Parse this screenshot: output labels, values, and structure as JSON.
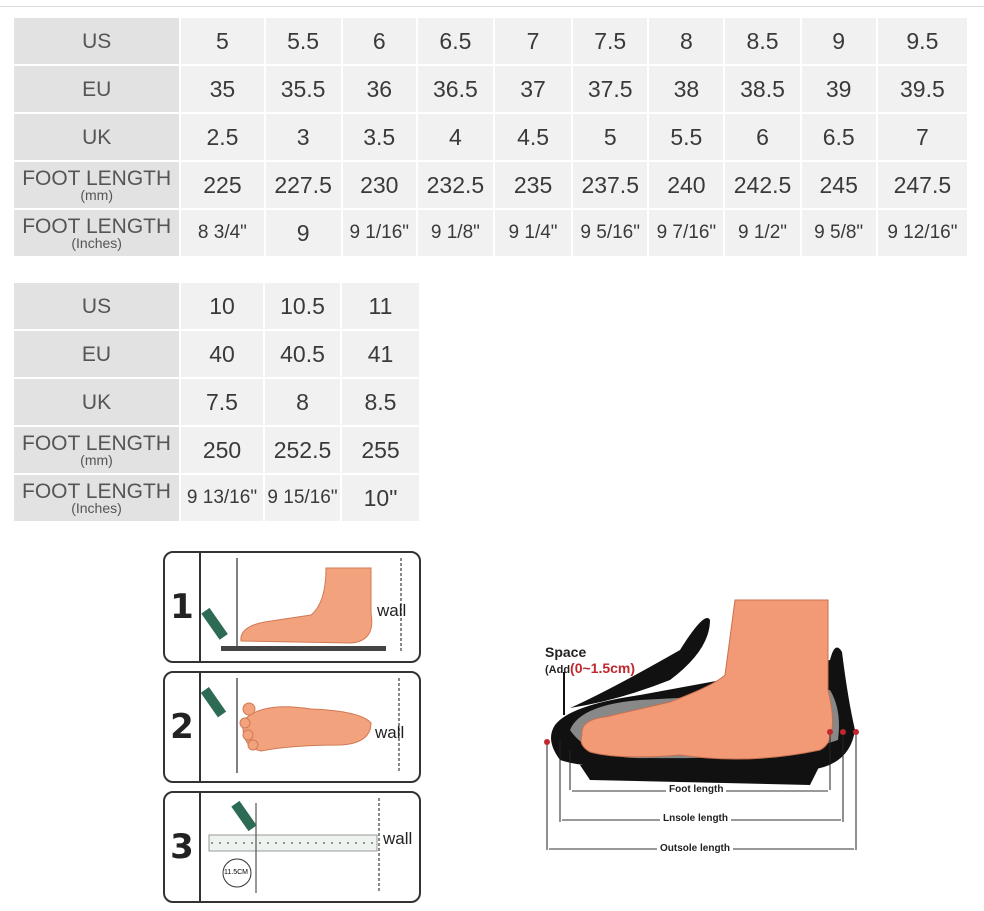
{
  "table1": {
    "rows": [
      {
        "label": "US",
        "sub": "",
        "cells": [
          "5",
          "5.5",
          "6",
          "6.5",
          "7",
          "7.5",
          "8",
          "8.5",
          "9",
          "9.5"
        ]
      },
      {
        "label": "EU",
        "sub": "",
        "cells": [
          "35",
          "35.5",
          "36",
          "36.5",
          "37",
          "37.5",
          "38",
          "38.5",
          "39",
          "39.5"
        ]
      },
      {
        "label": "UK",
        "sub": "",
        "cells": [
          "2.5",
          "3",
          "3.5",
          "4",
          "4.5",
          "5",
          "5.5",
          "6",
          "6.5",
          "7"
        ]
      },
      {
        "label": "FOOT LENGTH",
        "sub": "(mm)",
        "cells": [
          "225",
          "227.5",
          "230",
          "232.5",
          "235",
          "237.5",
          "240",
          "242.5",
          "245",
          "247.5"
        ]
      },
      {
        "label": "FOOT LENGTH",
        "sub": "(Inches)",
        "cells": [
          "8 3/4\"",
          "9",
          "9 1/16\"",
          "9 1/8\"",
          "9 1/4\"",
          "9 5/16\"",
          "9 7/16\"",
          "9 1/2\"",
          "9 5/8\"",
          "9 12/16\""
        ]
      }
    ]
  },
  "table2": {
    "rows": [
      {
        "label": "US",
        "sub": "",
        "cells": [
          "10",
          "10.5",
          "11"
        ]
      },
      {
        "label": "EU",
        "sub": "",
        "cells": [
          "40",
          "40.5",
          "41"
        ]
      },
      {
        "label": "UK",
        "sub": "",
        "cells": [
          "7.5",
          "8",
          "8.5"
        ]
      },
      {
        "label": "FOOT LENGTH",
        "sub": "(mm)",
        "cells": [
          "250",
          "252.5",
          "255"
        ]
      },
      {
        "label": "FOOT LENGTH",
        "sub": "(Inches)",
        "cells": [
          "9 13/16\"",
          "9 15/16\"",
          "10\""
        ]
      }
    ]
  },
  "steps": [
    {
      "number": "1",
      "wall": "wall"
    },
    {
      "number": "2",
      "wall": "wall"
    },
    {
      "number": "3",
      "wall": "wall",
      "ruler_label": "11.5CM"
    }
  ],
  "diagram": {
    "space_title": "Space",
    "space_add": "(Add",
    "space_range": "(0~1.5cm)",
    "foot_length": "Foot length",
    "insole_length": "Lnsole length",
    "outsole_length": "Outsole length"
  },
  "colors": {
    "skin": "#f0a07a",
    "sole": "#111111",
    "accent": "#c0272d",
    "cell": "#f1f1f1",
    "label_cell": "#e2e2e2"
  }
}
